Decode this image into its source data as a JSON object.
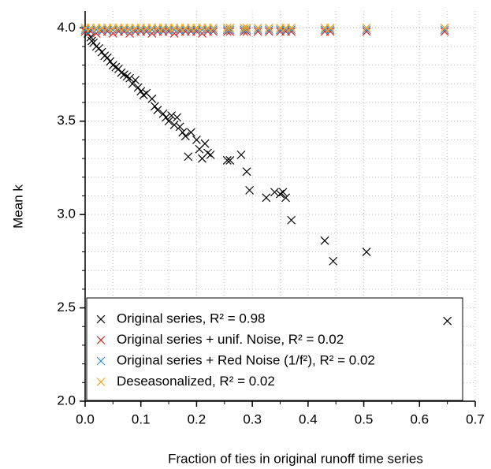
{
  "chart_data": {
    "type": "scatter",
    "xlabel": "Fraction of ties in original runoff time series",
    "ylabel": "Mean k",
    "xlim": [
      0,
      0.7
    ],
    "ylim": [
      2.0,
      4.09
    ],
    "xticks": [
      {
        "value": 0,
        "label": "0.0"
      },
      0.1,
      0.2,
      0.3,
      0.4,
      0.5,
      0.6,
      0.7
    ],
    "yticks": [
      {
        "value": 2,
        "label": "2.0"
      },
      2.5,
      {
        "value": 3,
        "label": "3.0"
      },
      3.5,
      {
        "value": 4,
        "label": "4.0"
      }
    ],
    "xminorticks": [
      0.05,
      0.15,
      0.25,
      0.35,
      0.45,
      0.55,
      0.65
    ],
    "yminorticks": [
      2.1,
      2.2,
      2.3,
      2.4,
      2.6,
      2.7,
      2.8,
      2.9,
      3.1,
      3.2,
      3.3,
      3.4,
      3.6,
      3.7,
      3.8,
      3.9,
      4.0
    ],
    "grid": true,
    "legend_position": "lower left",
    "series": [
      {
        "name": "Original series, R² = 0.98",
        "color": "#000000",
        "x": [
          0.005,
          0.01,
          0.012,
          0.015,
          0.02,
          0.025,
          0.03,
          0.035,
          0.04,
          0.045,
          0.05,
          0.055,
          0.06,
          0.065,
          0.07,
          0.075,
          0.08,
          0.085,
          0.09,
          0.095,
          0.1,
          0.105,
          0.11,
          0.12,
          0.125,
          0.13,
          0.14,
          0.145,
          0.15,
          0.155,
          0.16,
          0.165,
          0.17,
          0.175,
          0.18,
          0.185,
          0.19,
          0.2,
          0.205,
          0.21,
          0.215,
          0.22,
          0.225,
          0.255,
          0.26,
          0.28,
          0.29,
          0.295,
          0.325,
          0.34,
          0.35,
          0.355,
          0.36,
          0.37,
          0.43,
          0.445,
          0.505,
          0.65
        ],
        "values": [
          3.97,
          3.95,
          3.93,
          3.92,
          3.9,
          3.89,
          3.87,
          3.85,
          3.84,
          3.82,
          3.8,
          3.79,
          3.78,
          3.76,
          3.75,
          3.74,
          3.73,
          3.7,
          3.72,
          3.68,
          3.66,
          3.64,
          3.65,
          3.62,
          3.58,
          3.56,
          3.54,
          3.52,
          3.5,
          3.53,
          3.48,
          3.52,
          3.47,
          3.44,
          3.42,
          3.31,
          3.44,
          3.4,
          3.35,
          3.3,
          3.38,
          3.33,
          3.32,
          3.29,
          3.29,
          3.32,
          3.23,
          3.13,
          3.09,
          3.12,
          3.11,
          3.12,
          3.09,
          2.97,
          2.86,
          2.75,
          2.8,
          2.43
        ]
      },
      {
        "name": "Original series + unif. Noise, R² = 0.02",
        "color": "#d62728",
        "x": [
          0,
          0.01,
          0.02,
          0.03,
          0.04,
          0.05,
          0.06,
          0.07,
          0.08,
          0.09,
          0.1,
          0.11,
          0.12,
          0.13,
          0.14,
          0.15,
          0.16,
          0.17,
          0.18,
          0.19,
          0.2,
          0.21,
          0.22,
          0.23,
          0.255,
          0.26,
          0.285,
          0.29,
          0.31,
          0.33,
          0.35,
          0.36,
          0.37,
          0.43,
          0.44,
          0.505,
          0.645
        ],
        "values": [
          3.98,
          3.98,
          3.97,
          3.98,
          3.98,
          3.97,
          3.98,
          3.98,
          3.97,
          3.98,
          3.98,
          3.98,
          3.97,
          3.98,
          3.98,
          3.98,
          3.97,
          3.98,
          3.98,
          3.98,
          3.98,
          3.97,
          3.98,
          3.98,
          3.98,
          3.98,
          3.98,
          3.98,
          3.98,
          3.98,
          3.98,
          3.98,
          3.98,
          3.98,
          3.98,
          3.98,
          3.98
        ]
      },
      {
        "name": "Original series + Red Noise (1/f²), R² =  0.02",
        "color": "#3a8fc8",
        "x": [
          0,
          0.01,
          0.02,
          0.03,
          0.04,
          0.05,
          0.06,
          0.07,
          0.08,
          0.09,
          0.1,
          0.11,
          0.12,
          0.13,
          0.14,
          0.15,
          0.16,
          0.17,
          0.18,
          0.19,
          0.2,
          0.21,
          0.22,
          0.23,
          0.255,
          0.26,
          0.285,
          0.29,
          0.31,
          0.33,
          0.35,
          0.36,
          0.37,
          0.43,
          0.44,
          0.505,
          0.645
        ],
        "values": [
          3.99,
          3.99,
          3.99,
          3.99,
          3.99,
          3.99,
          3.99,
          3.99,
          3.99,
          3.99,
          3.99,
          3.99,
          3.99,
          3.99,
          3.99,
          3.99,
          3.99,
          3.99,
          3.99,
          3.99,
          3.99,
          3.99,
          3.99,
          3.99,
          3.99,
          3.99,
          3.99,
          3.99,
          3.99,
          3.99,
          3.99,
          3.99,
          3.99,
          3.99,
          3.99,
          3.99,
          3.99
        ]
      },
      {
        "name": "Deseasonalized, R² = 0.02",
        "color": "#f5a21b",
        "x": [
          0,
          0.01,
          0.02,
          0.03,
          0.04,
          0.05,
          0.06,
          0.07,
          0.08,
          0.09,
          0.1,
          0.11,
          0.12,
          0.13,
          0.14,
          0.15,
          0.16,
          0.17,
          0.18,
          0.19,
          0.2,
          0.21,
          0.22,
          0.23,
          0.255,
          0.26,
          0.285,
          0.29,
          0.31,
          0.33,
          0.35,
          0.36,
          0.37,
          0.43,
          0.44,
          0.505,
          0.645
        ],
        "values": [
          4.0,
          4.0,
          4.0,
          4.0,
          4.0,
          4.0,
          4.0,
          4.0,
          4.0,
          4.0,
          4.0,
          4.0,
          4.0,
          4.0,
          4.0,
          4.0,
          4.0,
          4.0,
          4.0,
          4.0,
          4.0,
          4.0,
          4.0,
          4.0,
          4.0,
          4.0,
          4.0,
          4.0,
          4.0,
          4.0,
          4.0,
          4.0,
          4.0,
          4.0,
          4.0,
          4.0,
          4.0
        ]
      }
    ]
  }
}
